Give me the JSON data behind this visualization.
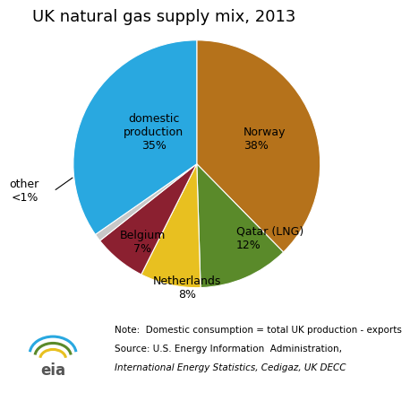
{
  "title": "UK natural gas supply mix, 2013",
  "slices": [
    {
      "label": "Norway\n38%",
      "value": 38,
      "color": "#b5721b"
    },
    {
      "label": "Qatar (LNG)\n12%",
      "value": 12,
      "color": "#5a8a2a"
    },
    {
      "label": "Netherlands\n8%",
      "value": 8,
      "color": "#e8c020"
    },
    {
      "label": "Belgium\n7%",
      "value": 7,
      "color": "#8b2030"
    },
    {
      "label": "other\n<1%",
      "value": 1,
      "color": "#c8c8c8"
    },
    {
      "label": "domestic\nproduction\n35%",
      "value": 35,
      "color": "#29a8e0"
    }
  ],
  "startangle": 90,
  "note_line1": "Note:  Domestic consumption = total UK production - exports",
  "note_line2": "Source: U.S. Energy Information  Administration,",
  "note_line3_italic": "International Energy Statistics",
  "note_line3_normal": ", Cedigaz, UK DECC",
  "title_fontsize": 13,
  "label_fontsize": 9,
  "note_fontsize": 7.5
}
